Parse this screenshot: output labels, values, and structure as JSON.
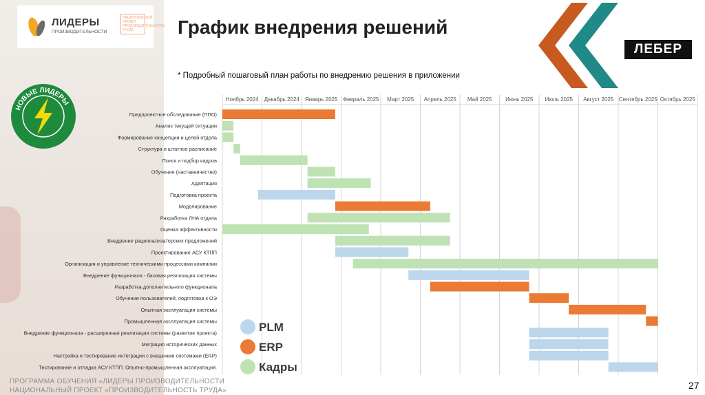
{
  "slide": {
    "title": "График внедрения решений",
    "note": "* Подробный пошаговый план работы по внедрению решения в приложении",
    "page_number": "27",
    "footer_line1": "ПРОГРАММА ОБУЧЕНИЯ «ЛИДЕРЫ ПРОИЗВОДИТЕЛЬНОСТИ",
    "footer_line2": "НАЦИОНАЛЬНЫЙ ПРОЕКТ «ПРОИЗВОДИТЕЛЬНОСТЬ ТРУДА»"
  },
  "logos": {
    "lidery_title": "ЛИДЕРЫ",
    "lidery_subtitle": "ПРОИЗВОДИТЕЛЬНОСТИ",
    "stamp_text": "НАЦИОНАЛЬНЫЙ ПРОЕКТ ПРОИЗВОДИТЕЛЬНОСТЬ ТРУДА",
    "badge_text": "НОВЫЕ ЛИДЕРЫ",
    "leber": "ЛЕБЕР",
    "chevron_colors": [
      "#c75b1f",
      "#1f8a87"
    ]
  },
  "colors": {
    "PLM": "#bcd6ec",
    "ERP": "#ea7a34",
    "Кадры": "#bfe2b5"
  },
  "chart_data": {
    "type": "gantt",
    "months": [
      "Ноябрь 2024",
      "Декабрь 2024",
      "Январь 2025",
      "Февраль 2025",
      "Март 2025",
      "Апрель 2025",
      "Май 2025",
      "Июнь 2025",
      "Июль 2025",
      "Август 2025",
      "Сентябрь 2025",
      "Октябрь 2025"
    ],
    "time_unit": "month index (0 = Ноябрь 2024)",
    "legend": [
      "PLM",
      "ERP",
      "Кадры"
    ],
    "legend_position": "bottom-middle",
    "tasks": [
      {
        "name": "Предпроектное обследование (ППО)",
        "series": "ERP",
        "start": 0.0,
        "end": 2.85
      },
      {
        "name": "Анализ текущей ситуации",
        "series": "Кадры",
        "start": 0.0,
        "end": 0.28
      },
      {
        "name": "Формирование концепции и целей отдела",
        "series": "Кадры",
        "start": 0.0,
        "end": 0.28
      },
      {
        "name": "Структура и штатное расписание",
        "series": "Кадры",
        "start": 0.28,
        "end": 0.45
      },
      {
        "name": "Поиск и подбор кадров",
        "series": "Кадры",
        "start": 0.45,
        "end": 2.15
      },
      {
        "name": "Обучение (наставничество)",
        "series": "Кадры",
        "start": 2.15,
        "end": 2.85
      },
      {
        "name": "Адаптация",
        "series": "Кадры",
        "start": 2.15,
        "end": 3.75
      },
      {
        "name": "Подготовка проекта",
        "series": "PLM",
        "start": 0.9,
        "end": 2.85
      },
      {
        "name": "Моделирование",
        "series": "ERP",
        "start": 2.85,
        "end": 5.25
      },
      {
        "name": "Разработка ЛНА отдела",
        "series": "Кадры",
        "start": 2.15,
        "end": 5.75
      },
      {
        "name": "Оценка эффективности",
        "series": "Кадры",
        "start": 0.0,
        "end": 3.7
      },
      {
        "name": "Внедрение рационализаторских предложений",
        "series": "Кадры",
        "start": 2.85,
        "end": 5.75
      },
      {
        "name": "Проектирование АСУ КТПП",
        "series": "PLM",
        "start": 2.85,
        "end": 4.7
      },
      {
        "name": "Организация и управление техническими процессами компании",
        "series": "Кадры",
        "start": 3.3,
        "end": 11.0
      },
      {
        "name": "Внедрение функционала - базовая реализация системы",
        "series": "PLM",
        "start": 4.7,
        "end": 7.75
      },
      {
        "name": "Разработка дополнительного функционала",
        "series": "ERP",
        "start": 5.25,
        "end": 7.75
      },
      {
        "name": "Обучение пользователей, подготовка к ОЭ",
        "series": "ERP",
        "start": 7.75,
        "end": 8.75
      },
      {
        "name": "Опытная эксплуатация системы",
        "series": "ERP",
        "start": 8.75,
        "end": 10.7
      },
      {
        "name": "Промышленная эксплуатация системы",
        "series": "ERP",
        "start": 10.7,
        "end": 11.0
      },
      {
        "name": "Внедрение функционала - расширенная реализация системы (развитие проекта)",
        "series": "PLM",
        "start": 7.75,
        "end": 9.75
      },
      {
        "name": "Миграция исторических данных",
        "series": "PLM",
        "start": 7.75,
        "end": 9.75
      },
      {
        "name": "Настройка и тестирование интеграции с внешними системами (ERP)",
        "series": "PLM",
        "start": 7.75,
        "end": 9.75
      },
      {
        "name": "Тестирование и отладка АСУ КТПП. Опытно-промышленная эксплуатация.",
        "series": "PLM",
        "start": 9.75,
        "end": 11.0
      }
    ]
  }
}
